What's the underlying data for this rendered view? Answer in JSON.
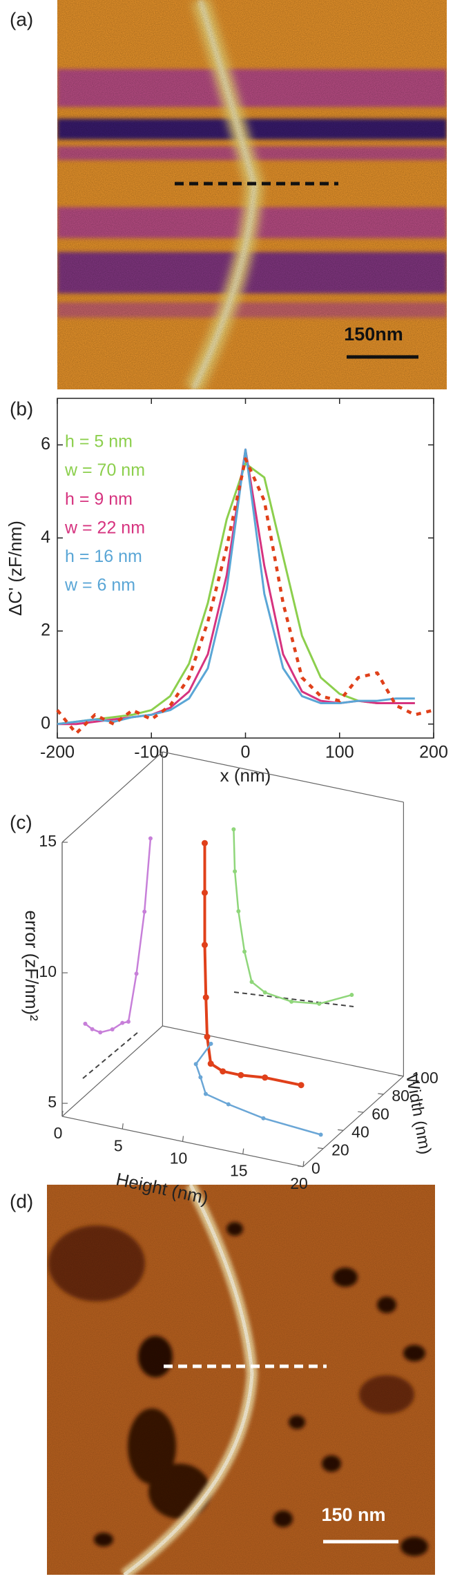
{
  "panels": {
    "a": "(a)",
    "b": "(b)",
    "c": "(c)",
    "d": "(d)"
  },
  "images": {
    "a_scale_bar": "150nm",
    "d_scale_bar": "150 nm"
  },
  "chart_data": [
    {
      "type": "line",
      "xlabel": "x (nm)",
      "ylabel": "ΔC' (zF/nm)",
      "x": [
        -200,
        -180,
        -160,
        -140,
        -120,
        -100,
        -80,
        -60,
        -40,
        -20,
        0,
        20,
        40,
        60,
        80,
        100,
        120,
        140,
        160,
        180,
        200
      ],
      "xlim": [
        -200,
        200
      ],
      "ylim": [
        -0.3,
        7
      ],
      "xticks": [
        -200,
        -100,
        0,
        100,
        200
      ],
      "yticks": [
        0,
        2,
        4,
        6
      ],
      "legend": "upper left",
      "series": [
        {
          "labels": [
            "h = 5 nm",
            "w = 70 nm"
          ],
          "color": "#8ccf4d",
          "style": "solid",
          "values": [
            0,
            0.05,
            0.1,
            0.15,
            0.2,
            0.3,
            0.6,
            1.3,
            2.6,
            4.4,
            5.6,
            5.3,
            3.6,
            1.9,
            1.0,
            0.65,
            0.5,
            0.45,
            0.45,
            0.45,
            null
          ]
        },
        {
          "labels": [
            "h = 9 nm",
            "w = 22 nm"
          ],
          "color": "#d6337f",
          "style": "solid",
          "values": [
            0,
            0,
            0.05,
            0.1,
            0.15,
            0.2,
            0.35,
            0.7,
            1.5,
            3.2,
            5.9,
            3.4,
            1.5,
            0.7,
            0.5,
            0.45,
            0.5,
            0.45,
            0.45,
            0.45,
            null
          ]
        },
        {
          "labels": [
            "h = 16 nm",
            "w = 6 nm"
          ],
          "color": "#5aa6d6",
          "style": "solid",
          "values": [
            0,
            0.05,
            0.1,
            0.05,
            0.15,
            0.2,
            0.3,
            0.55,
            1.2,
            2.9,
            5.9,
            2.8,
            1.2,
            0.6,
            0.45,
            0.45,
            0.5,
            0.5,
            0.55,
            0.55,
            null
          ]
        },
        {
          "color": "#e0401a",
          "style": "dotted",
          "values": [
            0.3,
            -0.2,
            0.2,
            0.0,
            0.3,
            0.1,
            0.4,
            1.0,
            2.2,
            3.8,
            5.7,
            4.8,
            2.6,
            1.0,
            0.6,
            0.5,
            1.0,
            1.1,
            0.4,
            0.2,
            0.3
          ]
        }
      ]
    },
    {
      "type": "line3d",
      "xlabel": "Height (nm)",
      "ylabel": "Width (nm)",
      "zlabel": "error (zF/nm)²",
      "xlim": [
        0,
        20
      ],
      "ylim": [
        0,
        100
      ],
      "zlim": [
        4.5,
        15
      ],
      "xticks": [
        0,
        5,
        10,
        15,
        20
      ],
      "yticks": [
        0,
        20,
        40,
        60,
        80,
        100
      ],
      "zticks": [
        5,
        10,
        15
      ],
      "series": [
        {
          "color": "#c77fd9",
          "plane": "x-min",
          "y": [
            23,
            30,
            38,
            50,
            60,
            66,
            74,
            82,
            88
          ],
          "z": [
            7.25,
            6.8,
            6.4,
            6.1,
            6.0,
            5.84,
            7.4,
            9.5,
            12.1
          ]
        },
        {
          "color": "#e0401a",
          "plane": "none",
          "x": [
            8.5,
            8.5,
            8.5,
            8.6,
            8.7,
            9,
            10,
            11.5,
            13.5,
            16.5
          ],
          "y": [
            40,
            40,
            40,
            40,
            40,
            40,
            40,
            40,
            40,
            40
          ],
          "z": [
            14.4,
            12.5,
            10.5,
            8.5,
            7,
            6,
            5.8,
            5.8,
            5.9,
            5.9
          ]
        },
        {
          "color": "#8fd67a",
          "plane": "y-max",
          "x": [
            5.9,
            6.0,
            6.3,
            6.8,
            7.4,
            8.5,
            10.7,
            13,
            15.7
          ],
          "z": [
            12.6,
            11,
            9.5,
            8,
            6.9,
            6.6,
            6.46,
            6.6,
            7.2
          ]
        },
        {
          "color": "#6aa6d6",
          "plane": "z-min",
          "x": [
            4.6,
            5.1,
            6.4,
            8.0,
            10.3,
            13.7,
            18.8
          ],
          "y": [
            93,
            72,
            61,
            47,
            42,
            36,
            32
          ]
        }
      ]
    }
  ]
}
